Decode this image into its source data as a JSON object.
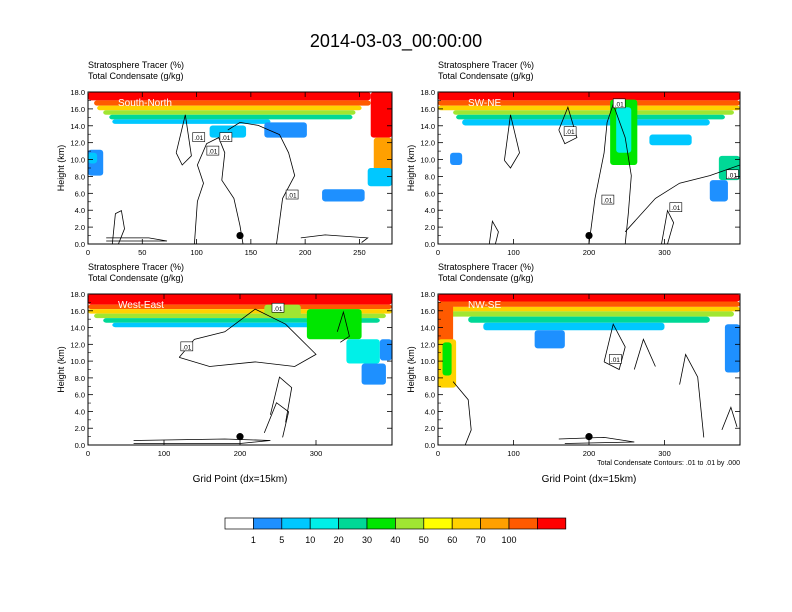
{
  "page": {
    "title": "2014-03-03_00:00:00"
  },
  "chart_data": [
    {
      "type": "heatmap",
      "header_lines": [
        "Stratosphere Tracer   (%)",
        "Total Condensate   (g/kg)"
      ],
      "section": "South-North",
      "ylabel": "Height (km)",
      "xlabel": "",
      "xlim": [
        0,
        280
      ],
      "ylim": [
        0,
        18
      ],
      "x_ticks": [
        "0",
        "50",
        "100",
        "150",
        "200",
        "250"
      ],
      "x_tick_values": [
        0,
        50,
        100,
        150,
        200,
        250
      ],
      "y_ticks": [
        "0.0",
        "2.0",
        "4.0",
        "6.0",
        "8.0",
        "10.0",
        "12.0",
        "14.0",
        "16.0",
        "18.0"
      ],
      "contour_labels": [
        ".01",
        ".01",
        ".01",
        ".01"
      ],
      "contour_label_pos": [
        [
          102,
          12.6
        ],
        [
          127,
          12.6
        ],
        [
          115,
          11.0
        ],
        [
          188,
          5.8
        ]
      ],
      "marker": {
        "x": 140,
        "y": 1.0
      }
    },
    {
      "type": "heatmap",
      "header_lines": [
        "Stratosphere Tracer   (%)",
        "Total Condensate   (g/kg)"
      ],
      "section": "SW-NE",
      "ylabel": "Height (km)",
      "xlabel": "",
      "xlim": [
        0,
        400
      ],
      "ylim": [
        0,
        18
      ],
      "x_ticks": [
        "0",
        "100",
        "200",
        "300"
      ],
      "x_tick_values": [
        0,
        100,
        200,
        300
      ],
      "y_ticks": [
        "0.0",
        "2.0",
        "4.0",
        "6.0",
        "8.0",
        "10.0",
        "12.0",
        "14.0",
        "16.0",
        "18.0"
      ],
      "contour_labels": [
        ".01",
        ".01",
        ".01",
        ".01",
        ".01"
      ],
      "contour_label_pos": [
        [
          240,
          16.6
        ],
        [
          175,
          13.3
        ],
        [
          225,
          5.2
        ],
        [
          315,
          4.3
        ],
        [
          390,
          8.2
        ]
      ],
      "marker": {
        "x": 200,
        "y": 1.0
      }
    },
    {
      "type": "heatmap",
      "header_lines": [
        "Stratosphere Tracer   (%)",
        "Total Condensate   (g/kg)"
      ],
      "section": "West-East",
      "ylabel": "Height (km)",
      "xlabel": "Grid Point (dx=15km)",
      "xlim": [
        0,
        400
      ],
      "ylim": [
        0,
        18
      ],
      "x_ticks": [
        "0",
        "100",
        "200",
        "300"
      ],
      "x_tick_values": [
        0,
        100,
        200,
        300
      ],
      "y_ticks": [
        "0.0",
        "2.0",
        "4.0",
        "6.0",
        "8.0",
        "10.0",
        "12.0",
        "14.0",
        "16.0",
        "18.0"
      ],
      "contour_labels": [
        ".01",
        ".01"
      ],
      "contour_label_pos": [
        [
          250,
          16.3
        ],
        [
          130,
          11.7
        ]
      ],
      "marker": {
        "x": 200,
        "y": 1.0
      }
    },
    {
      "type": "heatmap",
      "header_lines": [
        "Stratosphere Tracer   (%)",
        "Total Condensate   (g/kg)"
      ],
      "section": "NW-SE",
      "ylabel": "Height (km)",
      "xlabel": "Grid Point (dx=15km)",
      "xlim": [
        0,
        400
      ],
      "ylim": [
        0,
        18
      ],
      "x_ticks": [
        "0",
        "100",
        "200",
        "300"
      ],
      "x_tick_values": [
        0,
        100,
        200,
        300
      ],
      "y_ticks": [
        "0.0",
        "2.0",
        "4.0",
        "6.0",
        "8.0",
        "10.0",
        "12.0",
        "14.0",
        "16.0",
        "18.0"
      ],
      "contour_labels": [
        ".01"
      ],
      "contour_label_pos": [
        [
          235,
          10.2
        ]
      ],
      "marker": {
        "x": 200,
        "y": 1.0
      },
      "contour_note": "Total Condensate Contours: .01 to .01 by .000"
    }
  ],
  "colorbar": {
    "labels": [
      "1",
      "5",
      "10",
      "20",
      "30",
      "40",
      "50",
      "60",
      "70",
      "100"
    ],
    "colors": [
      "#ffffff",
      "#1e90ff",
      "#00c8ff",
      "#00f0e8",
      "#00d896",
      "#00e600",
      "#a0e632",
      "#ffff00",
      "#ffd200",
      "#ffa000",
      "#ff5a00",
      "#ff0000"
    ]
  }
}
